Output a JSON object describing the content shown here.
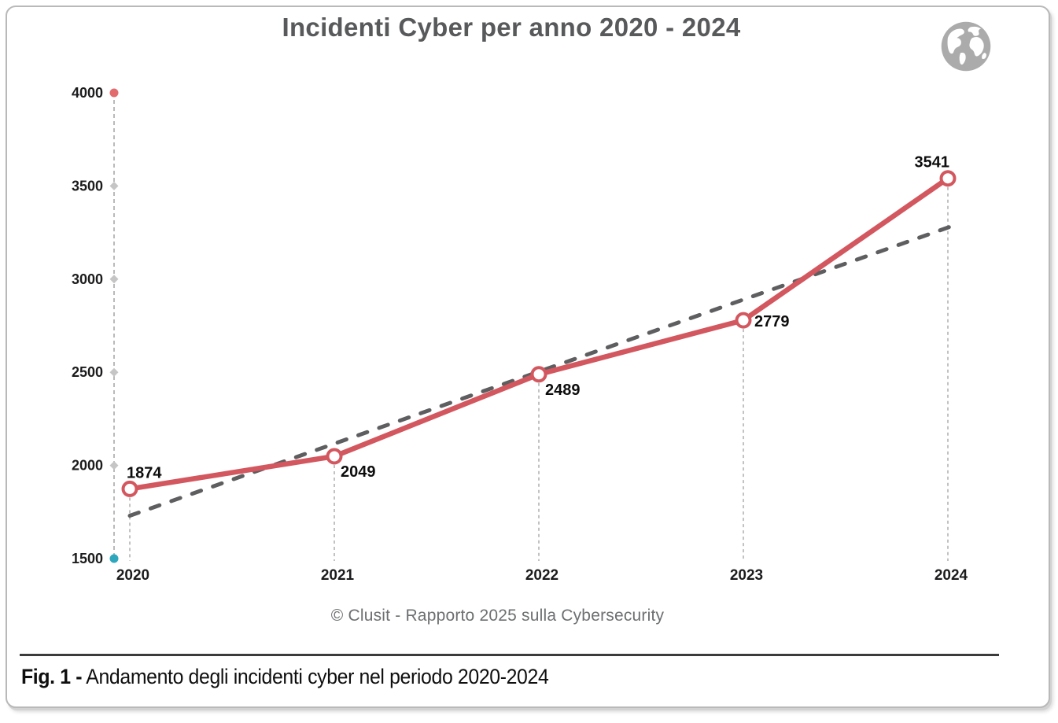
{
  "title": "Incidenti Cyber per anno 2020 - 2024",
  "source_caption": "© Clusit - Rapporto 2025 sulla Cybersecurity",
  "figure_caption": {
    "label": "Fig. 1 -",
    "text": "Andamento degli incidenti cyber nel periodo 2020-2024"
  },
  "icons": {
    "top_right": "globe-icon"
  },
  "colors": {
    "line": "#d3575f",
    "marker_fill": "#ffffff",
    "trend": "#5e5e60",
    "axis_dash": "#a8a8a8",
    "tick_diamond": "#c5c5c5",
    "axis_top_dot": "#e26b6e",
    "axis_bottom_dot": "#2ea7bd",
    "title_text": "#58595b",
    "tick_label_text": "#1c1c1e",
    "data_label_text": "#0d0d0d",
    "caption_text": "#6d6f71",
    "rule": "#3b3b3c",
    "globe": "#ababab"
  },
  "chart_data": {
    "type": "line",
    "title": "Incidenti Cyber per anno 2020 - 2024",
    "categories": [
      "2020",
      "2021",
      "2022",
      "2023",
      "2024"
    ],
    "series": [
      {
        "name": "Incidenti cyber",
        "values": [
          1874,
          2049,
          2489,
          2779,
          3541
        ]
      }
    ],
    "trendline": {
      "start_value": 1730,
      "end_value": 3300,
      "extend_years": 0.06
    },
    "xlabel": "",
    "ylabel": "",
    "ylim": [
      1500,
      4000
    ],
    "yticks": [
      1500,
      2000,
      2500,
      3000,
      3500,
      4000
    ],
    "grid": false,
    "legend": false,
    "label_positions": [
      "above",
      "below-right",
      "below-right",
      "right",
      "above-left"
    ]
  }
}
